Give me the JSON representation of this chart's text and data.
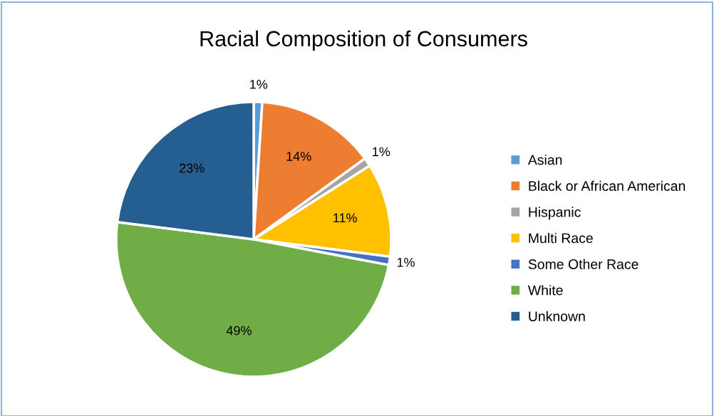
{
  "chart_data": {
    "type": "pie",
    "title": "Racial Composition of Consumers",
    "categories": [
      "Asian",
      "Black or African American",
      "Hispanic",
      "Multi Race",
      "Some Other Race",
      "White",
      "Unknown"
    ],
    "values": [
      1,
      14,
      1,
      11,
      1,
      49,
      23
    ],
    "colors": [
      "#5b9bd5",
      "#ed7d31",
      "#a5a5a5",
      "#ffc000",
      "#4472c4",
      "#70ad47",
      "#255e91"
    ],
    "value_labels": [
      "1%",
      "14%",
      "1%",
      "11%",
      "1%",
      "49%",
      "23%"
    ],
    "legend": "right"
  }
}
